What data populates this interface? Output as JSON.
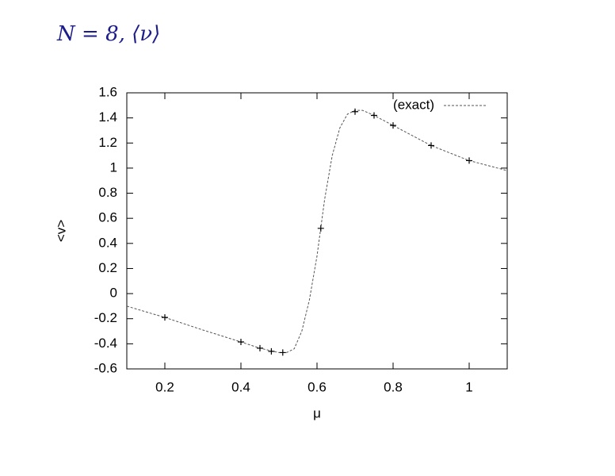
{
  "chart_data": {
    "type": "line",
    "title": "N = 8, ⟨ν⟩",
    "x_label": "μ",
    "y_label": "<v>",
    "xlim": [
      0.1,
      1.1
    ],
    "xticks": [
      0.2,
      0.4,
      0.6,
      0.8,
      1
    ],
    "ylim": [
      -0.6,
      1.6
    ],
    "yticks": [
      -0.6,
      -0.4,
      -0.2,
      0,
      0.2,
      0.4,
      0.6,
      0.8,
      1,
      1.2,
      1.4,
      1.6
    ],
    "legend": "top-right",
    "series": [
      {
        "name": "(exact)",
        "color": "#555555",
        "style": "dashed",
        "x": [
          0.1,
          0.2,
          0.3,
          0.4,
          0.45,
          0.5,
          0.52,
          0.54,
          0.56,
          0.58,
          0.6,
          0.62,
          0.64,
          0.66,
          0.68,
          0.7,
          0.72,
          0.75,
          0.8,
          0.85,
          0.9,
          0.95,
          1.0,
          1.05,
          1.1
        ],
        "values": [
          -0.1,
          -0.19,
          -0.29,
          -0.385,
          -0.435,
          -0.47,
          -0.47,
          -0.44,
          -0.3,
          -0.05,
          0.3,
          0.75,
          1.1,
          1.32,
          1.43,
          1.46,
          1.46,
          1.42,
          1.34,
          1.26,
          1.18,
          1.12,
          1.06,
          1.02,
          0.98
        ]
      },
      {
        "color": "#000000",
        "marker": "+",
        "x": [
          0.2,
          0.4,
          0.45,
          0.48,
          0.51,
          0.61,
          0.7,
          0.75,
          0.8,
          0.9,
          1.0
        ],
        "values": [
          -0.19,
          -0.385,
          -0.435,
          -0.46,
          -0.47,
          0.52,
          1.45,
          1.42,
          1.34,
          1.18,
          1.06
        ]
      }
    ]
  }
}
